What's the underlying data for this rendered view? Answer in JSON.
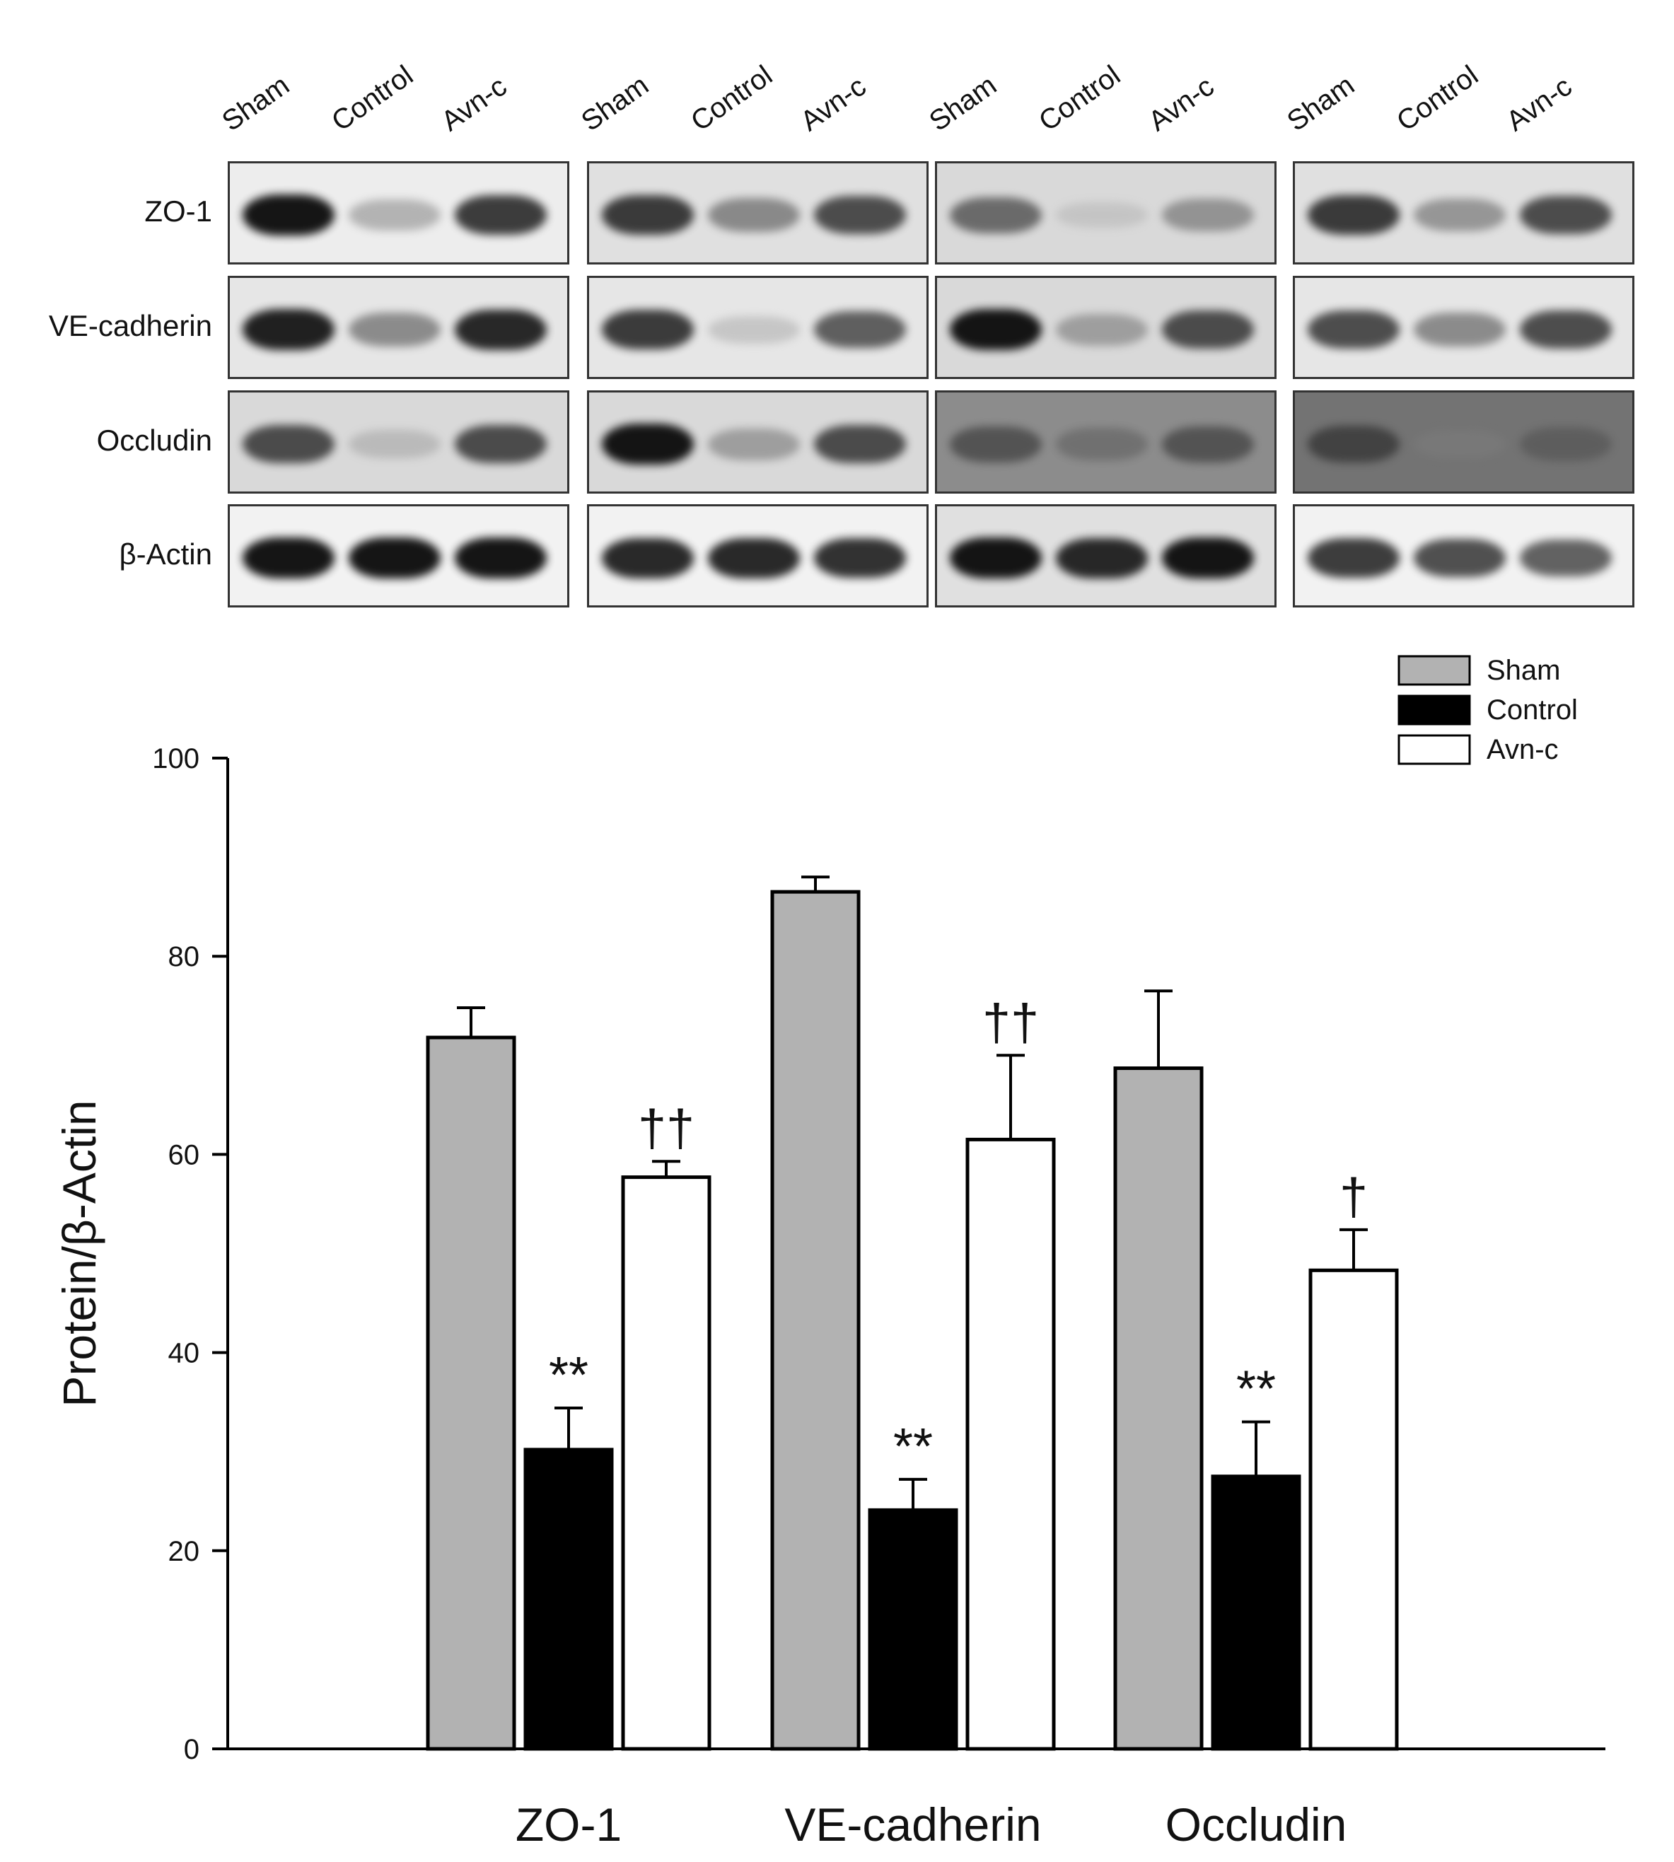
{
  "blot": {
    "lane_labels": [
      "Sham",
      "Control",
      "Avn-c"
    ],
    "row_labels": [
      "ZO-1",
      "VE-cadherin",
      "Occludin",
      "β-Actin"
    ],
    "panels": [
      {
        "rows": [
          {
            "intensity": [
              0.95,
              0.45,
              0.85
            ],
            "bg": 0.93
          },
          {
            "intensity": [
              0.92,
              0.6,
              0.9
            ],
            "bg": 0.9
          },
          {
            "intensity": [
              0.8,
              0.35,
              0.8
            ],
            "bg": 0.85
          },
          {
            "intensity": [
              0.95,
              0.95,
              0.95
            ],
            "bg": 0.95
          }
        ]
      },
      {
        "rows": [
          {
            "intensity": [
              0.85,
              0.6,
              0.8
            ],
            "bg": 0.88
          },
          {
            "intensity": [
              0.85,
              0.3,
              0.75
            ],
            "bg": 0.9
          },
          {
            "intensity": [
              0.95,
              0.5,
              0.8
            ],
            "bg": 0.85
          },
          {
            "intensity": [
              0.9,
              0.9,
              0.88
            ],
            "bg": 0.95
          }
        ]
      },
      {
        "rows": [
          {
            "intensity": [
              0.7,
              0.2,
              0.55
            ],
            "bg": 0.85
          },
          {
            "intensity": [
              0.95,
              0.5,
              0.8
            ],
            "bg": 0.85
          },
          {
            "intensity": [
              0.7,
              0.55,
              0.7
            ],
            "bg": 0.55
          },
          {
            "intensity": [
              0.95,
              0.9,
              0.95
            ],
            "bg": 0.88
          }
        ]
      },
      {
        "rows": [
          {
            "intensity": [
              0.85,
              0.55,
              0.8
            ],
            "bg": 0.88
          },
          {
            "intensity": [
              0.8,
              0.6,
              0.8
            ],
            "bg": 0.9
          },
          {
            "intensity": [
              0.75,
              0.35,
              0.6
            ],
            "bg": 0.45
          },
          {
            "intensity": [
              0.85,
              0.8,
              0.75
            ],
            "bg": 0.95
          }
        ]
      }
    ]
  },
  "chart_data": {
    "type": "bar",
    "categories": [
      "ZO-1",
      "VE-cadherin",
      "Occludin"
    ],
    "series": [
      {
        "name": "Sham",
        "color": "#b2b2b2",
        "values": [
          71.8,
          86.5,
          68.7
        ],
        "errors": [
          3.0,
          1.5,
          7.8
        ],
        "significance": [
          "",
          "",
          ""
        ]
      },
      {
        "name": "Control",
        "color": "#000000",
        "values": [
          30.2,
          24.1,
          27.5
        ],
        "errors": [
          4.2,
          3.1,
          5.5
        ],
        "significance": [
          "**",
          "**",
          "**"
        ]
      },
      {
        "name": "Avn-c",
        "color": "#ffffff",
        "values": [
          57.7,
          61.5,
          48.3
        ],
        "errors": [
          1.6,
          8.5,
          4.1
        ],
        "significance": [
          "††",
          "††",
          "†"
        ]
      }
    ],
    "ylabel": "Protein/β-Actin",
    "xlabel": "",
    "ylim": [
      0,
      100
    ],
    "yticks": [
      "0",
      "20",
      "40",
      "60",
      "80",
      "100"
    ],
    "legend_position": "top-right"
  }
}
